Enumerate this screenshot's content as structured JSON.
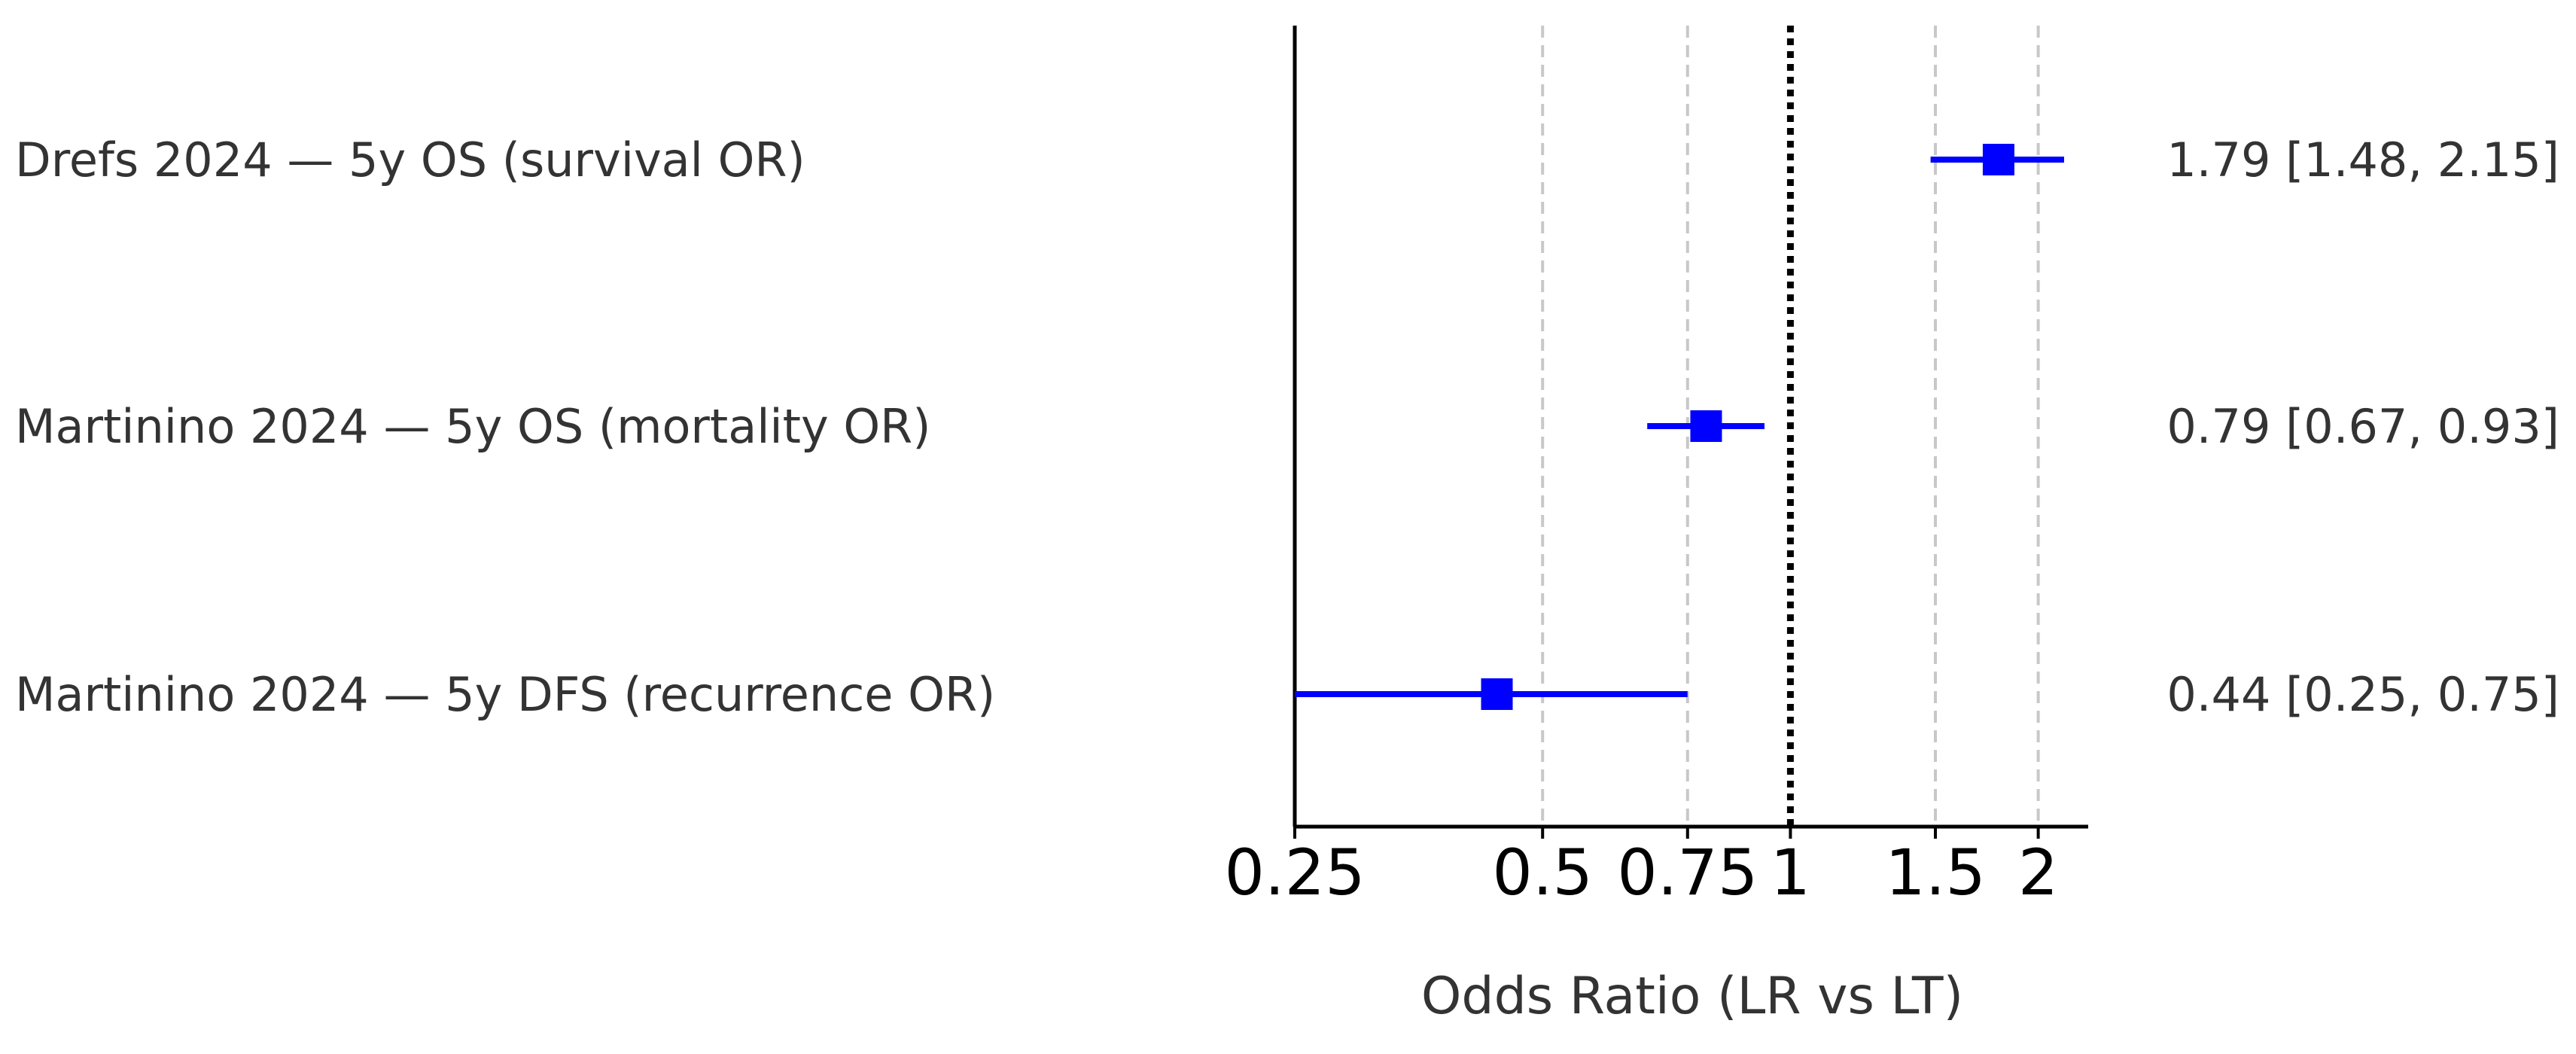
{
  "chart_data": {
    "type": "forest",
    "x_scale": "log",
    "xlabel": "Odds Ratio (LR vs LT)",
    "xlim": [
      0.25,
      2.3
    ],
    "xticks": [
      0.25,
      0.5,
      0.75,
      1,
      1.5,
      2
    ],
    "xtick_labels": [
      "0.25",
      "0.5",
      "0.75",
      "1",
      "1.5",
      "2"
    ],
    "reference_line": 1,
    "gridlines": [
      0.5,
      0.75,
      1.5,
      2
    ],
    "grid": true,
    "marker_color": "#0000ff",
    "studies": [
      {
        "label": "Drefs 2024 — 5y OS (survival OR)",
        "or": 1.79,
        "lower": 1.48,
        "upper": 2.15,
        "ci_text": "1.79 [1.48, 2.15]"
      },
      {
        "label": "Martinino 2024 — 5y OS (mortality OR)",
        "or": 0.79,
        "lower": 0.67,
        "upper": 0.93,
        "ci_text": "0.79 [0.67, 0.93]"
      },
      {
        "label": "Martinino 2024 — 5y DFS (recurrence OR)",
        "or": 0.44,
        "lower": 0.25,
        "upper": 0.75,
        "ci_text": "0.44 [0.25, 0.75]"
      }
    ]
  }
}
